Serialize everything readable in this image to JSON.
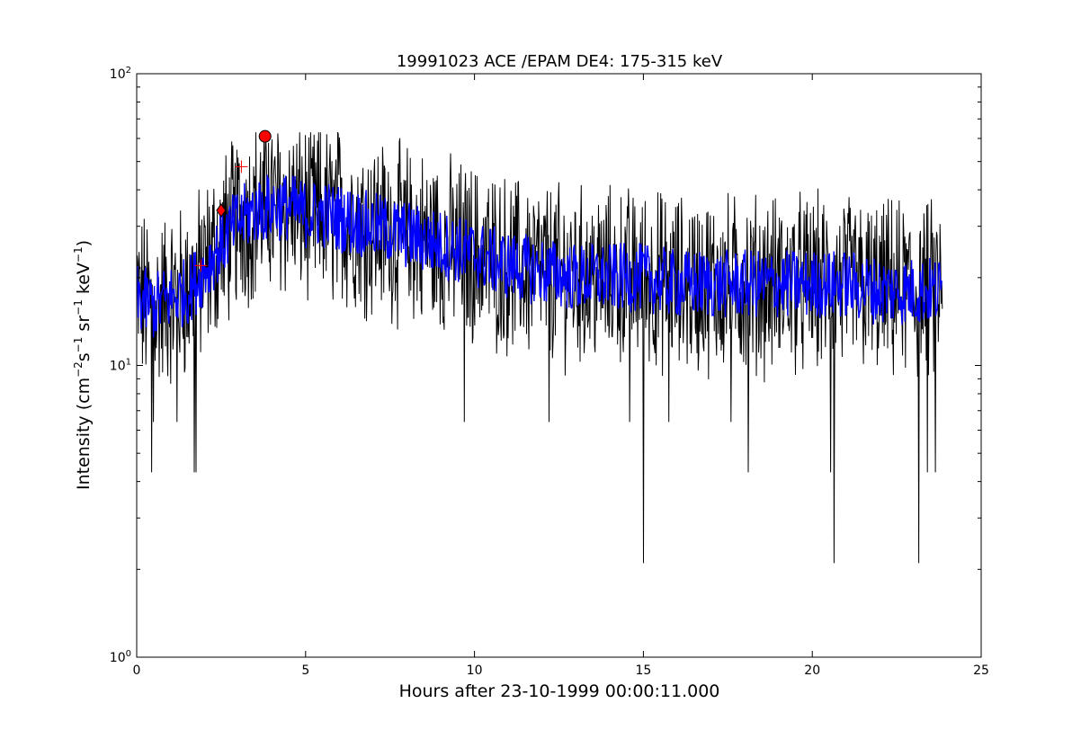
{
  "chart_data": {
    "type": "line",
    "title": "19991023 ACE /EPAM DE4: 175-315 keV",
    "xlabel": "Hours after 23-10-1999 00:00:11.000",
    "ylabel": {
      "prefix": "Intensity (cm",
      "exp1": "−2",
      "s": "s",
      "exp2": "−1",
      "sr": " sr",
      "exp3": "−1",
      "kev": " keV",
      "exp4": "−1",
      "suffix": ")"
    },
    "xlim": [
      0,
      25
    ],
    "ylim": [
      1,
      100
    ],
    "yscale": "log",
    "xticks": [
      0,
      5,
      10,
      15,
      20,
      25
    ],
    "xtick_labels": [
      "0",
      "5",
      "10",
      "15",
      "20",
      "25"
    ],
    "yticks": [
      1,
      10,
      100
    ],
    "ytick_labels": [
      {
        "base": "10",
        "exp": "0"
      },
      {
        "base": "10",
        "exp": "1"
      },
      {
        "base": "10",
        "exp": "2"
      }
    ],
    "series": [
      {
        "color": "#000000",
        "x_range": [
          0.0,
          23.85
        ],
        "profile": [
          [
            0.0,
            17
          ],
          [
            0.5,
            16
          ],
          [
            1.0,
            17
          ],
          [
            1.5,
            18
          ],
          [
            2.0,
            21
          ],
          [
            2.5,
            26
          ],
          [
            3.0,
            31
          ],
          [
            3.5,
            34
          ],
          [
            4.0,
            35
          ],
          [
            4.5,
            35
          ],
          [
            5.0,
            33
          ],
          [
            5.5,
            33
          ],
          [
            6.0,
            32
          ],
          [
            6.5,
            31
          ],
          [
            7.0,
            30
          ],
          [
            7.5,
            29
          ],
          [
            8.0,
            28
          ],
          [
            9.0,
            26
          ],
          [
            10.0,
            24
          ],
          [
            11.0,
            22
          ],
          [
            12.0,
            21
          ],
          [
            13.0,
            20
          ],
          [
            14.0,
            20
          ],
          [
            15.0,
            20
          ],
          [
            16.0,
            19
          ],
          [
            17.0,
            19
          ],
          [
            18.0,
            19
          ],
          [
            19.0,
            19
          ],
          [
            20.0,
            19
          ],
          [
            21.0,
            19
          ],
          [
            22.0,
            18
          ],
          [
            23.0,
            18
          ],
          [
            23.85,
            18
          ]
        ],
        "spikes": [
          [
            0.45,
            4.3
          ],
          [
            1.7,
            4.3
          ],
          [
            1.75,
            4.3
          ],
          [
            15.0,
            2.1
          ],
          [
            18.1,
            4.3
          ],
          [
            20.55,
            4.3
          ],
          [
            20.65,
            2.1
          ],
          [
            23.15,
            2.1
          ],
          [
            23.4,
            4.3
          ],
          [
            23.65,
            4.3
          ],
          [
            9.7,
            6.4
          ],
          [
            12.2,
            6.4
          ],
          [
            14.6,
            6.4
          ],
          [
            15.75,
            6.4
          ],
          [
            17.6,
            6.4
          ],
          [
            0.5,
            6.4
          ],
          [
            1.2,
            6.4
          ],
          [
            5.95,
            63
          ],
          [
            3.9,
            58
          ]
        ]
      },
      {
        "color": "#0000ff",
        "x_range": [
          0.0,
          23.85
        ],
        "profile": [
          [
            0.0,
            17
          ],
          [
            0.5,
            16
          ],
          [
            1.0,
            17
          ],
          [
            1.5,
            18
          ],
          [
            2.0,
            21
          ],
          [
            2.5,
            26
          ],
          [
            3.0,
            31
          ],
          [
            3.5,
            34
          ],
          [
            4.0,
            35
          ],
          [
            4.5,
            35
          ],
          [
            5.0,
            33
          ],
          [
            5.5,
            33
          ],
          [
            6.0,
            32
          ],
          [
            6.5,
            31
          ],
          [
            7.0,
            30
          ],
          [
            7.5,
            29
          ],
          [
            8.0,
            28
          ],
          [
            9.0,
            26
          ],
          [
            10.0,
            24
          ],
          [
            11.0,
            22
          ],
          [
            12.0,
            21
          ],
          [
            13.0,
            20
          ],
          [
            14.0,
            20
          ],
          [
            15.0,
            20
          ],
          [
            16.0,
            19
          ],
          [
            17.0,
            19
          ],
          [
            18.0,
            19
          ],
          [
            19.0,
            19
          ],
          [
            20.0,
            19
          ],
          [
            21.0,
            19
          ],
          [
            22.0,
            18
          ],
          [
            23.0,
            18
          ],
          [
            23.85,
            18
          ]
        ]
      }
    ],
    "markers": [
      {
        "shape": "circle",
        "x": 3.8,
        "y": 61,
        "color": "#ff0000"
      },
      {
        "shape": "diamond",
        "x": 2.5,
        "y": 34,
        "color": "#ff0000"
      },
      {
        "shape": "plus",
        "x": 3.1,
        "y": 48,
        "color": "#ff0000"
      },
      {
        "shape": "plus",
        "x": 1.9,
        "y": 22,
        "color": "#ff0000"
      }
    ],
    "grid": false
  }
}
